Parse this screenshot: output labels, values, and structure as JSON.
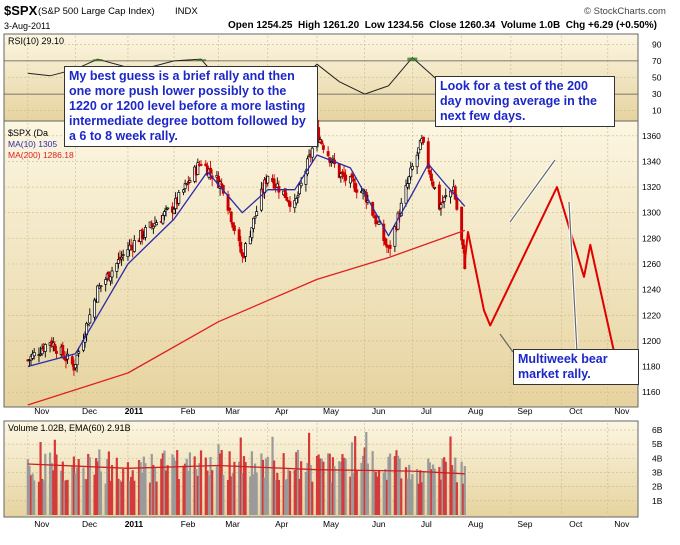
{
  "header": {
    "symbol": "$SPX",
    "name": "(S&P 500 Large Cap Index)",
    "exchange": "INDX",
    "date": "3-Aug-2011",
    "ohlc": "Open 1254.25  High 1261.20  Low 1234.56  Close 1260.34  Volume 1.0B  Chg +6.29 (+0.50%)",
    "credit": "© StockCharts.com"
  },
  "legend": {
    "rsi": "RSI(10) 29.10",
    "price": "$SPX (Da",
    "ma10": "MA(10) 1305",
    "ma200": "MA(200) 1286.18",
    "volume": "Volume 1.02B, EMA(60) 2.91B"
  },
  "annotations": {
    "left": "My best guess is a brief rally and then one more push lower possibly to the 1220 or 1200 level before a more lasting intermediate degree bottom followed by a 6 to 8 week rally.",
    "right": "Look for a test of the 200 day moving average in the next few days.",
    "rally": "Multiweek bear market rally."
  },
  "colors": {
    "panel_top": "#fbf3dc",
    "panel_bottom": "#e8d6a6",
    "up_candle": "#000000",
    "down_candle": "#cc0000",
    "ma10": "#2b2ba8",
    "ma200": "#e02020",
    "projection": "#e00000",
    "volume_up": "#9a9a9a",
    "volume_down": "#d43a3a",
    "rsi_fill": "#3a7a2a",
    "annotation_text": "#1d27c8"
  },
  "chart_data": [
    {
      "type": "line",
      "title": "RSI(10)",
      "yticks": [
        90,
        70,
        50,
        30,
        10
      ],
      "ylim": [
        0,
        100
      ],
      "x": [
        "2010-11-01",
        "2010-11-15",
        "2010-12-01",
        "2010-12-15",
        "2011-01-03",
        "2011-01-18",
        "2011-02-01",
        "2011-02-18",
        "2011-03-01",
        "2011-03-16",
        "2011-04-01",
        "2011-04-18",
        "2011-05-02",
        "2011-05-16",
        "2011-06-01",
        "2011-06-16",
        "2011-07-01",
        "2011-07-18",
        "2011-08-03"
      ],
      "values": [
        55,
        52,
        60,
        72,
        62,
        63,
        70,
        72,
        48,
        35,
        60,
        42,
        66,
        45,
        30,
        40,
        74,
        45,
        29.1
      ]
    },
    {
      "type": "line",
      "title": "$SPX price",
      "yticks": [
        1360,
        1340,
        1320,
        1300,
        1280,
        1260,
        1240,
        1220,
        1200,
        1180,
        1160
      ],
      "ylim": [
        1150,
        1370
      ],
      "xticks": [
        "Nov",
        "Dec",
        "2011",
        "Feb",
        "Mar",
        "Apr",
        "May",
        "Jun",
        "Jul",
        "Aug",
        "Sep",
        "Oct",
        "Nov"
      ],
      "series": [
        {
          "name": "$SPX",
          "x": [
            "2010-11-01",
            "2010-11-15",
            "2010-11-30",
            "2010-12-15",
            "2011-01-03",
            "2011-01-18",
            "2011-02-01",
            "2011-02-18",
            "2011-03-04",
            "2011-03-16",
            "2011-04-01",
            "2011-04-18",
            "2011-05-02",
            "2011-05-16",
            "2011-06-01",
            "2011-06-16",
            "2011-07-01",
            "2011-07-07",
            "2011-07-18",
            "2011-07-27",
            "2011-08-03"
          ],
          "values": [
            1185,
            1200,
            1180,
            1240,
            1272,
            1290,
            1305,
            1340,
            1320,
            1265,
            1330,
            1305,
            1362,
            1330,
            1315,
            1270,
            1335,
            1355,
            1305,
            1320,
            1260
          ]
        },
        {
          "name": "MA(10)",
          "x": [
            "2010-11-01",
            "2010-12-01",
            "2011-01-03",
            "2011-02-01",
            "2011-02-22",
            "2011-03-16",
            "2011-04-01",
            "2011-04-18",
            "2011-05-02",
            "2011-05-23",
            "2011-06-16",
            "2011-07-01",
            "2011-07-11",
            "2011-07-22",
            "2011-08-03"
          ],
          "values": [
            1180,
            1190,
            1260,
            1295,
            1332,
            1300,
            1318,
            1318,
            1345,
            1335,
            1282,
            1315,
            1338,
            1322,
            1305
          ]
        },
        {
          "name": "MA(200)",
          "x": [
            "2010-11-01",
            "2011-01-03",
            "2011-03-01",
            "2011-05-02",
            "2011-06-16",
            "2011-08-03"
          ],
          "values": [
            1150,
            1175,
            1215,
            1248,
            1265,
            1286.18
          ]
        },
        {
          "name": "projection",
          "x": [
            "2011-08-03",
            "2011-08-05",
            "2011-08-15",
            "2011-08-19",
            "2011-09-30",
            "2011-10-17",
            "2011-10-21",
            "2011-11-07"
          ],
          "values": [
            1262,
            1285,
            1224,
            1212,
            1320,
            1250,
            1275,
            1180
          ]
        }
      ]
    },
    {
      "type": "bar",
      "title": "Volume",
      "yticks": [
        "6B",
        "5B",
        "4B",
        "3B",
        "2B",
        "1B"
      ],
      "ylim": [
        0,
        6.5
      ],
      "xticks": [
        "Nov",
        "Dec",
        "2011",
        "Feb",
        "Mar",
        "Apr",
        "May",
        "Jun",
        "Jul",
        "Aug",
        "Sep",
        "Oct",
        "Nov"
      ],
      "series": [
        {
          "name": "EMA(60)",
          "x": [
            "2010-11-01",
            "2011-01-03",
            "2011-03-01",
            "2011-05-02",
            "2011-07-01",
            "2011-08-03"
          ],
          "values": [
            3.6,
            3.3,
            3.5,
            3.2,
            3.1,
            2.91
          ]
        }
      ]
    }
  ]
}
